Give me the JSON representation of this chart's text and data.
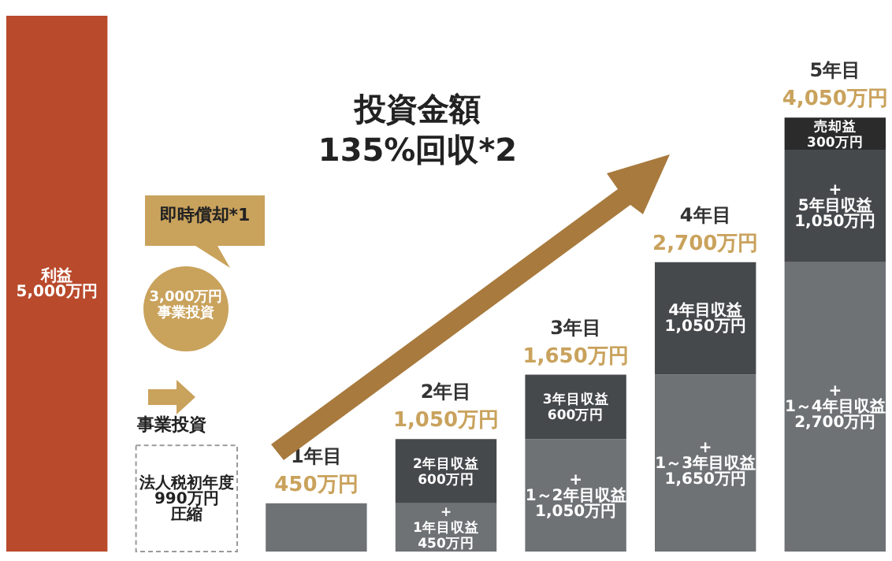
{
  "chart_data": {
    "type": "bar",
    "stacked": true,
    "categories": [
      null,
      null,
      "1年目",
      "2年目",
      "3年目",
      "4年目",
      "5年目"
    ],
    "series": [
      {
        "colors": [
          "#b94a2c",
          "#ffffff",
          "#6e7275",
          "#6e7275",
          "#6e7275",
          "#6e7275",
          "#6e7275"
        ],
        "values": [
          5000,
          990,
          450,
          450,
          1050,
          1650,
          2700
        ],
        "value_labels": [
          "利益5,000万円",
          "法人税初年度990万円圧縮",
          null,
          "+1年目収益450万円",
          "+1～2年目収益1,050万円",
          "+1～3年目収益1,650万円",
          "+1～4年目収益2,700万円"
        ]
      },
      {
        "color": "#46494c",
        "values": [
          null,
          null,
          null,
          600,
          600,
          1050,
          1050
        ],
        "value_labels": [
          null,
          null,
          null,
          "2年目収益600万円",
          "3年目収益600万円",
          "4年目収益1,050万円",
          "+5年目収益1,050万円"
        ]
      },
      {
        "color": "#2b2b2c",
        "values": [
          null,
          null,
          null,
          null,
          null,
          null,
          300
        ],
        "value_labels": [
          null,
          null,
          null,
          null,
          null,
          null,
          "売却益300万円"
        ]
      }
    ],
    "totals": [
      null,
      null,
      "450万円",
      "1,050万円",
      "1,650万円",
      "2,700万円",
      "4,050万円"
    ],
    "annotations": [
      "即時償却*1",
      "3,000万円事業投資",
      "事業投資",
      "投資金額",
      "135%回収*2"
    ]
  }
}
